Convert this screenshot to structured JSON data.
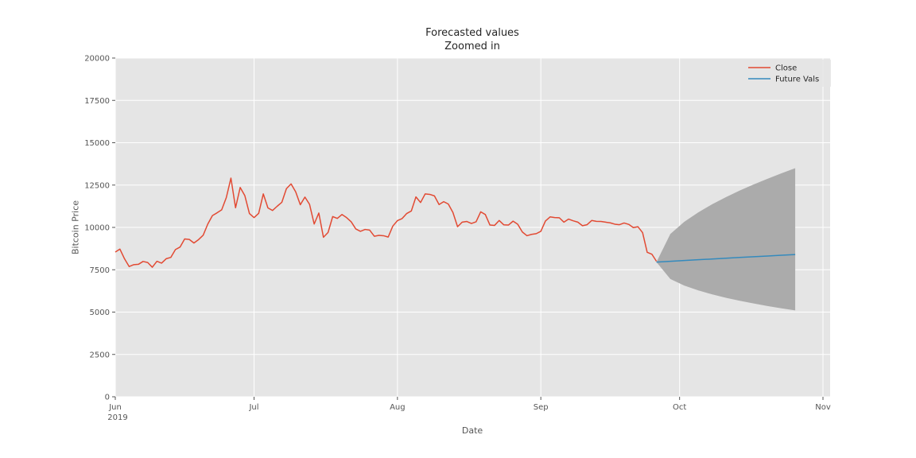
{
  "figure": {
    "background": "#ffffff"
  },
  "chart_data": {
    "type": "line",
    "title": "Forecasted values\nZoomed in",
    "title_lines": [
      "Forecasted values",
      "Zoomed in"
    ],
    "xlabel": "Date",
    "ylabel": "Bitcoin Price",
    "ylim": [
      0,
      20000
    ],
    "yticks": [
      0,
      2500,
      5000,
      7500,
      10000,
      12500,
      15000,
      17500,
      20000
    ],
    "grid": true,
    "legend_position": "upper right",
    "colors": {
      "close": "#E24A33",
      "future": "#348ABD",
      "band": "#ABABAB",
      "plot_bg": "#E5E5E5",
      "grid": "#FFFFFF",
      "tick": "#555555",
      "legend_text": "#262626"
    },
    "x_axis": {
      "start_date": "2019-06-01",
      "days_total": 153,
      "ticks": [
        {
          "day": 0,
          "label": "Jun",
          "sublabel": "2019"
        },
        {
          "day": 30,
          "label": "Jul"
        },
        {
          "day": 61,
          "label": "Aug"
        },
        {
          "day": 92,
          "label": "Sep"
        },
        {
          "day": 122,
          "label": "Oct"
        },
        {
          "day": 153,
          "label": "Nov"
        }
      ]
    },
    "series": [
      {
        "name": "Close",
        "color": "#E24A33",
        "start_day": 0,
        "cadence": "daily",
        "values": [
          8545,
          8720,
          8145,
          7690,
          7800,
          7820,
          7990,
          7930,
          7650,
          8000,
          7890,
          8150,
          8230,
          8690,
          8840,
          9320,
          9290,
          9080,
          9280,
          9540,
          10200,
          10700,
          10860,
          11040,
          11760,
          12910,
          11160,
          12360,
          11880,
          10820,
          10580,
          10830,
          11980,
          11150,
          11000,
          11250,
          11480,
          12290,
          12570,
          12100,
          11340,
          11790,
          11360,
          10200,
          10850,
          9420,
          9700,
          10640,
          10530,
          10760,
          10580,
          10330,
          9910,
          9770,
          9880,
          9840,
          9480,
          9530,
          9510,
          9430,
          10080,
          10400,
          10520,
          10820,
          10970,
          11800,
          11470,
          11980,
          11950,
          11860,
          11350,
          11520,
          11380,
          10880,
          10040,
          10310,
          10350,
          10230,
          10330,
          10920,
          10760,
          10140,
          10120,
          10410,
          10150,
          10140,
          10370,
          10190,
          9730,
          9510,
          9590,
          9630,
          9770,
          10380,
          10620,
          10580,
          10570,
          10310,
          10490,
          10390,
          10310,
          10100,
          10160,
          10410,
          10360,
          10350,
          10310,
          10270,
          10190,
          10160,
          10260,
          10180,
          9990,
          10040,
          9690,
          8530,
          8420,
          8000
        ]
      },
      {
        "name": "Future Vals",
        "color": "#348ABD",
        "days": [
          117,
          120,
          123,
          126,
          129,
          132,
          135,
          138,
          141,
          144,
          147
        ],
        "values": [
          7950,
          8000,
          8045,
          8090,
          8135,
          8180,
          8225,
          8270,
          8310,
          8355,
          8400
        ],
        "ci_lower": [
          7950,
          6957,
          6569,
          6283,
          6048,
          5847,
          5669,
          5509,
          5358,
          5224,
          5100
        ],
        "ci_upper": [
          7950,
          9613,
          10326,
          10883,
          11361,
          11786,
          12175,
          12537,
          12872,
          13193,
          13500
        ]
      }
    ],
    "legend": [
      "Close",
      "Future Vals"
    ]
  }
}
